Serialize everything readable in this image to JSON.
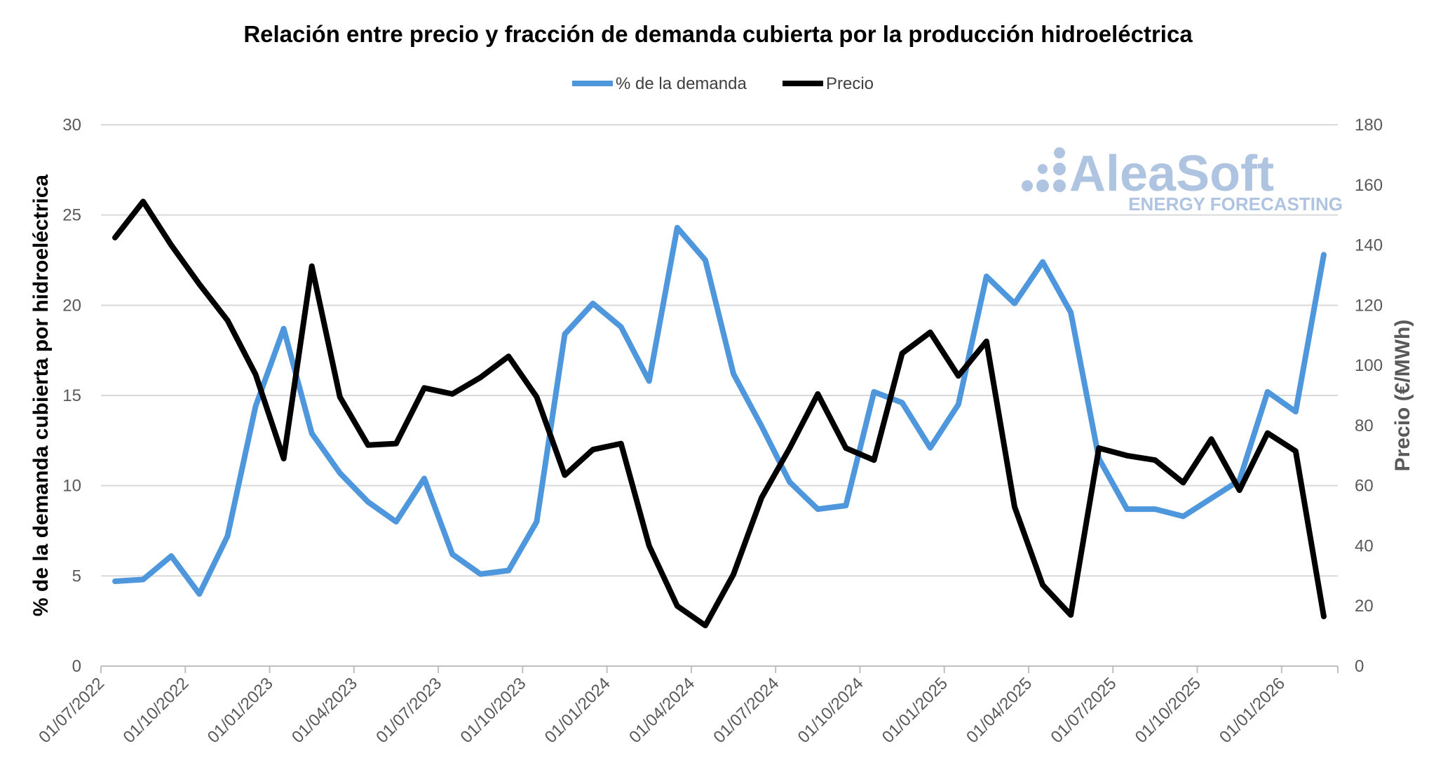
{
  "chart_data": {
    "type": "line",
    "title": "Relación entre precio y fracción de demanda cubierta por la producción hidroeléctrica",
    "ylabel": "% de la demanda cubierta por hidroeléctrica",
    "y2label": "Precio (€/MWh)",
    "ylim": [
      0,
      30
    ],
    "y2lim": [
      0,
      180
    ],
    "yticks": [
      "0",
      "5",
      "10",
      "15",
      "20",
      "25",
      "30"
    ],
    "y2ticks": [
      "0",
      "20",
      "40",
      "60",
      "80",
      "100",
      "120",
      "140",
      "160",
      "180"
    ],
    "xtick_labels": [
      "01/07/2022",
      "01/10/2022",
      "01/01/2023",
      "01/04/2023",
      "01/07/2023",
      "01/10/2023",
      "01/01/2024",
      "01/04/2024",
      "01/07/2024",
      "01/10/2024",
      "01/01/2025",
      "01/04/2025",
      "01/07/2025",
      "01/10/2025",
      "01/01/2026"
    ],
    "grid": true,
    "legend_position": "top",
    "series": [
      {
        "name": "% de la demanda",
        "axis": "left",
        "color": "#4f97dc",
        "values": [
          4.7,
          4.8,
          6.1,
          4.0,
          7.2,
          14.4,
          18.7,
          12.9,
          10.7,
          9.1,
          8.0,
          10.4,
          6.2,
          5.1,
          5.3,
          8.0,
          18.4,
          20.1,
          18.8,
          15.8,
          24.3,
          22.5,
          16.2,
          13.3,
          10.2,
          8.7,
          8.9,
          15.2,
          14.6,
          12.1,
          14.5,
          21.6,
          20.1,
          22.4,
          19.6,
          11.5,
          8.7,
          8.7,
          8.3,
          9.3,
          10.3,
          15.2,
          14.1,
          22.8
        ]
      },
      {
        "name": "Precio",
        "axis": "right",
        "color": "#000000",
        "values": [
          142.5,
          154.5,
          140,
          127,
          115,
          97,
          69,
          133,
          89.5,
          73.5,
          74,
          92.5,
          90.5,
          96,
          103,
          89.5,
          63.5,
          72,
          74,
          40,
          20,
          13.5,
          30.5,
          56,
          72.5,
          90.5,
          72.5,
          68.5,
          104,
          111,
          96.5,
          108,
          53,
          27,
          17,
          72.5,
          70,
          68.5,
          61,
          75.5,
          58.5,
          77.5,
          71.5,
          16.5
        ]
      }
    ]
  },
  "watermark": {
    "brand": "AleaSoft",
    "tagline": "ENERGY FORECASTING",
    "color": "#aec4e0"
  }
}
